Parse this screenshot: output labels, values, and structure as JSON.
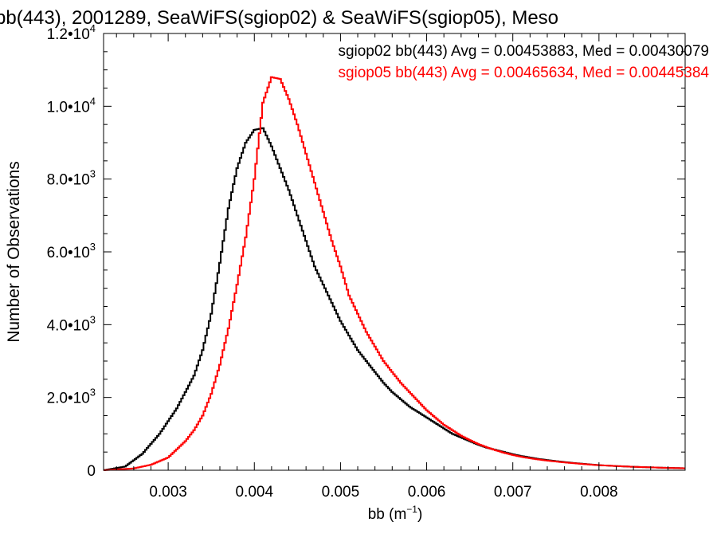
{
  "chart_data": {
    "type": "line",
    "title": "bb(443), 2001289, SeaWiFS(sgiop02) & SeaWiFS(sgiop05), Meso",
    "xlabel": "bb (m",
    "xlabel_exp": "−1",
    "xlabel_close": ")",
    "ylabel": "Number of Observations",
    "xlim": [
      0.00225,
      0.009
    ],
    "ylim": [
      0,
      12000
    ],
    "grid": false,
    "legend_position": "top-right",
    "x_ticks": [
      {
        "value": 0.003,
        "label": "0.003"
      },
      {
        "value": 0.004,
        "label": "0.004"
      },
      {
        "value": 0.005,
        "label": "0.005"
      },
      {
        "value": 0.006,
        "label": "0.006"
      },
      {
        "value": 0.007,
        "label": "0.007"
      },
      {
        "value": 0.008,
        "label": "0.008"
      }
    ],
    "y_ticks": [
      {
        "value": 0,
        "mantissa": "0",
        "exp": ""
      },
      {
        "value": 2000,
        "mantissa": "2.0•10",
        "exp": "3"
      },
      {
        "value": 4000,
        "mantissa": "4.0•10",
        "exp": "3"
      },
      {
        "value": 6000,
        "mantissa": "6.0•10",
        "exp": "3"
      },
      {
        "value": 8000,
        "mantissa": "8.0•10",
        "exp": "3"
      },
      {
        "value": 10000,
        "mantissa": "1.0•10",
        "exp": "4"
      },
      {
        "value": 12000,
        "mantissa": "1.2•10",
        "exp": "4"
      }
    ],
    "series": [
      {
        "name": "sgiop02",
        "color": "#000000",
        "legend": "sgiop02 bb(443) Avg = 0.00453883, Med = 0.00430079",
        "points": [
          [
            0.00225,
            0
          ],
          [
            0.0025,
            100
          ],
          [
            0.0027,
            450
          ],
          [
            0.0029,
            1000
          ],
          [
            0.0031,
            1700
          ],
          [
            0.0033,
            2600
          ],
          [
            0.0034,
            3300
          ],
          [
            0.0035,
            4300
          ],
          [
            0.0036,
            5700
          ],
          [
            0.0037,
            7200
          ],
          [
            0.0038,
            8300
          ],
          [
            0.0039,
            9000
          ],
          [
            0.004,
            9350
          ],
          [
            0.0041,
            9400
          ],
          [
            0.0042,
            8900
          ],
          [
            0.0043,
            8300
          ],
          [
            0.0044,
            7700
          ],
          [
            0.0045,
            7000
          ],
          [
            0.0046,
            6300
          ],
          [
            0.0047,
            5600
          ],
          [
            0.0048,
            5100
          ],
          [
            0.0049,
            4600
          ],
          [
            0.005,
            4100
          ],
          [
            0.0051,
            3700
          ],
          [
            0.0052,
            3300
          ],
          [
            0.0053,
            3000
          ],
          [
            0.0054,
            2700
          ],
          [
            0.0055,
            2400
          ],
          [
            0.0056,
            2150
          ],
          [
            0.0057,
            1950
          ],
          [
            0.0058,
            1750
          ],
          [
            0.0059,
            1600
          ],
          [
            0.006,
            1450
          ],
          [
            0.0061,
            1300
          ],
          [
            0.0062,
            1150
          ],
          [
            0.0063,
            1000
          ],
          [
            0.0064,
            900
          ],
          [
            0.0065,
            800
          ],
          [
            0.0066,
            700
          ],
          [
            0.0067,
            620
          ],
          [
            0.0068,
            560
          ],
          [
            0.0069,
            500
          ],
          [
            0.007,
            440
          ],
          [
            0.0071,
            390
          ],
          [
            0.0072,
            350
          ],
          [
            0.0073,
            310
          ],
          [
            0.0074,
            280
          ],
          [
            0.0075,
            250
          ],
          [
            0.0076,
            225
          ],
          [
            0.0077,
            200
          ],
          [
            0.0078,
            180
          ],
          [
            0.0079,
            160
          ],
          [
            0.008,
            140
          ],
          [
            0.0082,
            115
          ],
          [
            0.0084,
            95
          ],
          [
            0.0086,
            80
          ],
          [
            0.0088,
            65
          ],
          [
            0.009,
            55
          ]
        ]
      },
      {
        "name": "sgiop05",
        "color": "#ff0000",
        "legend": "sgiop05 bb(443) Avg = 0.00465634, Med = 0.00445384",
        "points": [
          [
            0.00225,
            0
          ],
          [
            0.0026,
            50
          ],
          [
            0.0028,
            150
          ],
          [
            0.003,
            350
          ],
          [
            0.0032,
            800
          ],
          [
            0.0033,
            1100
          ],
          [
            0.0034,
            1500
          ],
          [
            0.0035,
            2100
          ],
          [
            0.0036,
            2900
          ],
          [
            0.0037,
            3900
          ],
          [
            0.0038,
            5100
          ],
          [
            0.0039,
            6400
          ],
          [
            0.004,
            8000
          ],
          [
            0.0041,
            10100
          ],
          [
            0.0042,
            10800
          ],
          [
            0.0043,
            10750
          ],
          [
            0.0044,
            10200
          ],
          [
            0.0045,
            9500
          ],
          [
            0.0046,
            8700
          ],
          [
            0.0047,
            7900
          ],
          [
            0.0048,
            7100
          ],
          [
            0.0049,
            6300
          ],
          [
            0.005,
            5600
          ],
          [
            0.0051,
            4800
          ],
          [
            0.0052,
            4300
          ],
          [
            0.0053,
            3800
          ],
          [
            0.0054,
            3400
          ],
          [
            0.0055,
            3000
          ],
          [
            0.0056,
            2700
          ],
          [
            0.0057,
            2400
          ],
          [
            0.0058,
            2150
          ],
          [
            0.0059,
            1900
          ],
          [
            0.006,
            1650
          ],
          [
            0.0061,
            1450
          ],
          [
            0.0062,
            1250
          ],
          [
            0.0063,
            1100
          ],
          [
            0.0064,
            950
          ],
          [
            0.0065,
            830
          ],
          [
            0.0066,
            720
          ],
          [
            0.0067,
            630
          ],
          [
            0.0068,
            550
          ],
          [
            0.0069,
            480
          ],
          [
            0.007,
            420
          ],
          [
            0.0071,
            370
          ],
          [
            0.0072,
            330
          ],
          [
            0.0073,
            295
          ],
          [
            0.0074,
            265
          ],
          [
            0.0075,
            240
          ],
          [
            0.0076,
            215
          ],
          [
            0.0077,
            195
          ],
          [
            0.0078,
            175
          ],
          [
            0.0079,
            155
          ],
          [
            0.008,
            140
          ],
          [
            0.0082,
            115
          ],
          [
            0.0084,
            95
          ],
          [
            0.0086,
            80
          ],
          [
            0.0088,
            65
          ],
          [
            0.009,
            55
          ]
        ]
      }
    ]
  }
}
